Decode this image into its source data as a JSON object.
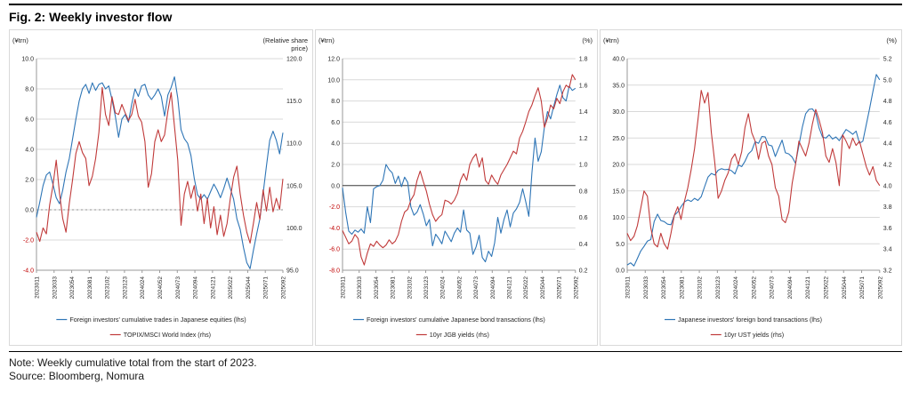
{
  "page": {
    "title": "Fig. 2: Weekly investor flow",
    "note": "Note: Weekly cumulative total from the start of 2023.",
    "source": "Source: Bloomberg, Nomura"
  },
  "colors": {
    "blue": "#2e75b6",
    "red": "#c03a3a",
    "negative_tick": "#c00000",
    "text": "#262626",
    "grid": "#d9d9d9",
    "axis": "#9a9a9a",
    "zero_dark": "#404040"
  },
  "x_tick_labels": [
    "2023011",
    "2023033",
    "2023054",
    "2023081",
    "2023102",
    "2023123",
    "2024024",
    "2024052",
    "2024073",
    "2024094",
    "2024121",
    "2025022",
    "2025044",
    "2025071",
    "2025092"
  ],
  "chart_data": [
    {
      "type": "line",
      "name": "japan-equities-flow",
      "unit_left": "(¥trn)",
      "unit_right_lines": [
        "(Relative share",
        "price)"
      ],
      "left_axis": {
        "min": -4,
        "max": 10,
        "ticks": [
          "10.0",
          "8.0",
          "6.0",
          "4.0",
          "2.0",
          "0.0",
          "-2.0",
          "-4.0"
        ]
      },
      "right_axis": {
        "min": 95,
        "max": 120,
        "ticks": [
          "120.0",
          "115.0",
          "110.0",
          "105.0",
          "100.0",
          "95.0"
        ]
      },
      "zero_line": "dashed",
      "series": [
        {
          "name": "Foreign investors' cumulative trades in Japanese equities (lhs)",
          "axis": "left",
          "color_key": "blue",
          "values": [
            -0.5,
            0.5,
            1.6,
            2.3,
            2.5,
            1.7,
            0.8,
            0.4,
            1.3,
            2.5,
            3.4,
            4.7,
            6.0,
            7.2,
            8.0,
            8.3,
            7.7,
            8.4,
            7.9,
            8.3,
            8.4,
            8.0,
            8.2,
            7.3,
            6.2,
            4.8,
            6.0,
            6.3,
            5.8,
            7.0,
            8.0,
            7.5,
            8.2,
            8.3,
            7.6,
            7.3,
            7.6,
            8.0,
            7.5,
            6.2,
            7.6,
            8.1,
            8.8,
            7.4,
            5.3,
            4.7,
            4.4,
            3.6,
            2.1,
            1.0,
            0.7,
            1.0,
            0.7,
            1.2,
            1.7,
            1.3,
            0.8,
            1.4,
            2.1,
            1.4,
            0.7,
            -0.6,
            -1.3,
            -2.5,
            -3.5,
            -3.9,
            -2.7,
            -1.6,
            -0.6,
            1.1,
            2.9,
            4.6,
            5.2,
            4.6,
            3.7,
            5.1
          ]
        },
        {
          "name": "TOPIX/MSCI World Index (rhs)",
          "axis": "right",
          "color_key": "red",
          "values": [
            99.5,
            98.4,
            100.0,
            99.3,
            102.7,
            105.0,
            108.0,
            104.1,
            101.1,
            99.5,
            102.9,
            105.7,
            108.8,
            110.2,
            108.9,
            108.2,
            105.0,
            106.1,
            108.2,
            111.3,
            116.6,
            113.4,
            112.1,
            115.5,
            113.6,
            113.4,
            114.6,
            113.6,
            112.7,
            113.4,
            115.2,
            113.2,
            112.5,
            110.2,
            104.8,
            106.4,
            110.2,
            111.6,
            110.2,
            111.0,
            113.8,
            116.0,
            112.0,
            108.0,
            100.3,
            104.0,
            105.5,
            103.5,
            105.0,
            102.0,
            104.0,
            100.5,
            103.5,
            100.0,
            102.5,
            99.2,
            101.5,
            99.0,
            100.5,
            103.5,
            106.0,
            107.3,
            104.0,
            101.5,
            99.5,
            98.2,
            100.5,
            103.0,
            101.0,
            104.5,
            102.0,
            104.8,
            101.9,
            103.5,
            102.2,
            105.8
          ]
        }
      ]
    },
    {
      "type": "line",
      "name": "japan-bond-flow",
      "unit_left": "(¥trn)",
      "unit_right_lines": [
        "(%)"
      ],
      "left_axis": {
        "min": -8,
        "max": 12,
        "ticks": [
          "12.0",
          "10.0",
          "8.0",
          "6.0",
          "4.0",
          "2.0",
          "0.0",
          "-2.0",
          "-4.0",
          "-6.0",
          "-8.0"
        ]
      },
      "right_axis": {
        "min": 0.2,
        "max": 1.8,
        "ticks": [
          "1.8",
          "1.6",
          "1.4",
          "1.2",
          "1.0",
          "0.8",
          "0.6",
          "0.4",
          "0.2"
        ]
      },
      "zero_line": "solid-dark",
      "series": [
        {
          "name": "Foreign investors' cumulative Japanese bond transactions (lhs)",
          "axis": "left",
          "color_key": "blue",
          "values": [
            -0.2,
            -2.5,
            -4.3,
            -4.6,
            -4.2,
            -4.4,
            -4.1,
            -4.5,
            -2.0,
            -3.5,
            -0.3,
            -0.1,
            0.0,
            0.5,
            2.0,
            1.5,
            1.2,
            0.2,
            0.9,
            -0.1,
            0.8,
            0.3,
            -2.0,
            -2.8,
            -2.5,
            -1.8,
            -2.7,
            -3.8,
            -3.2,
            -5.7,
            -4.6,
            -5.0,
            -5.5,
            -4.3,
            -4.8,
            -5.3,
            -4.5,
            -4.0,
            -4.4,
            -2.3,
            -4.2,
            -4.5,
            -6.5,
            -5.8,
            -4.7,
            -6.8,
            -7.2,
            -6.2,
            -6.7,
            -5.4,
            -3.0,
            -4.5,
            -3.2,
            -2.3,
            -3.9,
            -2.6,
            -2.2,
            -1.6,
            -0.3,
            -1.5,
            -2.9,
            1.2,
            4.5,
            2.3,
            3.2,
            5.5,
            7.0,
            6.3,
            7.5,
            8.6,
            9.5,
            8.3,
            8.0,
            9.4,
            9.0,
            9.2
          ]
        },
        {
          "name": "10yr JGB yields (rhs)",
          "axis": "right",
          "color_key": "red",
          "values": [
            0.5,
            0.45,
            0.4,
            0.42,
            0.47,
            0.44,
            0.3,
            0.24,
            0.33,
            0.4,
            0.38,
            0.42,
            0.39,
            0.37,
            0.39,
            0.43,
            0.4,
            0.42,
            0.47,
            0.57,
            0.64,
            0.66,
            0.73,
            0.77,
            0.88,
            0.95,
            0.87,
            0.8,
            0.7,
            0.62,
            0.57,
            0.6,
            0.62,
            0.73,
            0.72,
            0.7,
            0.73,
            0.78,
            0.88,
            0.93,
            0.88,
            1.0,
            1.05,
            1.08,
            0.98,
            1.05,
            0.88,
            0.85,
            0.92,
            0.88,
            0.85,
            0.92,
            0.96,
            1.0,
            1.05,
            1.1,
            1.08,
            1.2,
            1.25,
            1.32,
            1.4,
            1.45,
            1.52,
            1.58,
            1.48,
            1.28,
            1.35,
            1.45,
            1.42,
            1.5,
            1.46,
            1.55,
            1.6,
            1.58,
            1.68,
            1.64
          ]
        }
      ]
    },
    {
      "type": "line",
      "name": "foreign-bond-flow",
      "unit_left": "(¥trn)",
      "unit_right_lines": [
        "(%)"
      ],
      "left_axis": {
        "min": 0,
        "max": 40,
        "ticks": [
          "40.0",
          "35.0",
          "30.0",
          "25.0",
          "20.0",
          "15.0",
          "10.0",
          "5.0",
          "0.0"
        ]
      },
      "right_axis": {
        "min": 3.2,
        "max": 5.2,
        "ticks": [
          "5.2",
          "5.0",
          "4.8",
          "4.6",
          "4.4",
          "4.2",
          "4.0",
          "3.8",
          "3.6",
          "3.4",
          "3.2"
        ]
      },
      "zero_line": null,
      "series": [
        {
          "name": "Japanese investors' foreign bond transactions (lhs)",
          "axis": "left",
          "color_key": "blue",
          "values": [
            1.0,
            1.4,
            0.8,
            2.2,
            3.6,
            4.5,
            5.5,
            5.8,
            9.2,
            10.6,
            9.4,
            9.2,
            8.7,
            8.6,
            10.4,
            11.0,
            12.0,
            12.9,
            13.3,
            13.0,
            13.6,
            13.2,
            13.9,
            15.8,
            17.6,
            18.3,
            18.0,
            18.9,
            19.2,
            19.0,
            19.1,
            18.8,
            18.2,
            19.9,
            19.6,
            20.6,
            22.0,
            22.6,
            24.3,
            24.0,
            25.3,
            25.2,
            23.7,
            23.5,
            21.5,
            23.1,
            24.6,
            22.2,
            22.0,
            21.4,
            20.2,
            23.6,
            27.0,
            29.6,
            30.4,
            30.5,
            29.7,
            26.9,
            25.2,
            25.0,
            25.6,
            24.8,
            25.2,
            24.5,
            25.6,
            26.6,
            26.2,
            25.7,
            26.3,
            24.0,
            24.4,
            27.5,
            30.5,
            33.8,
            37.0,
            36.0
          ]
        },
        {
          "name": "10yr UST yields (rhs)",
          "axis": "right",
          "color_key": "red",
          "values": [
            3.55,
            3.48,
            3.52,
            3.62,
            3.78,
            3.95,
            3.9,
            3.6,
            3.45,
            3.42,
            3.55,
            3.45,
            3.4,
            3.55,
            3.72,
            3.8,
            3.68,
            3.85,
            3.98,
            4.15,
            4.35,
            4.62,
            4.9,
            4.78,
            4.88,
            4.5,
            4.22,
            3.88,
            3.95,
            4.05,
            4.12,
            4.25,
            4.3,
            4.2,
            4.32,
            4.55,
            4.68,
            4.5,
            4.42,
            4.25,
            4.4,
            4.42,
            4.28,
            4.2,
            3.98,
            3.9,
            3.68,
            3.65,
            3.75,
            4.02,
            4.2,
            4.42,
            4.35,
            4.28,
            4.4,
            4.58,
            4.72,
            4.62,
            4.5,
            4.28,
            4.22,
            4.35,
            4.22,
            4.0,
            4.48,
            4.42,
            4.35,
            4.45,
            4.38,
            4.42,
            4.3,
            4.18,
            4.1,
            4.18,
            4.05,
            4.0
          ]
        }
      ]
    }
  ]
}
